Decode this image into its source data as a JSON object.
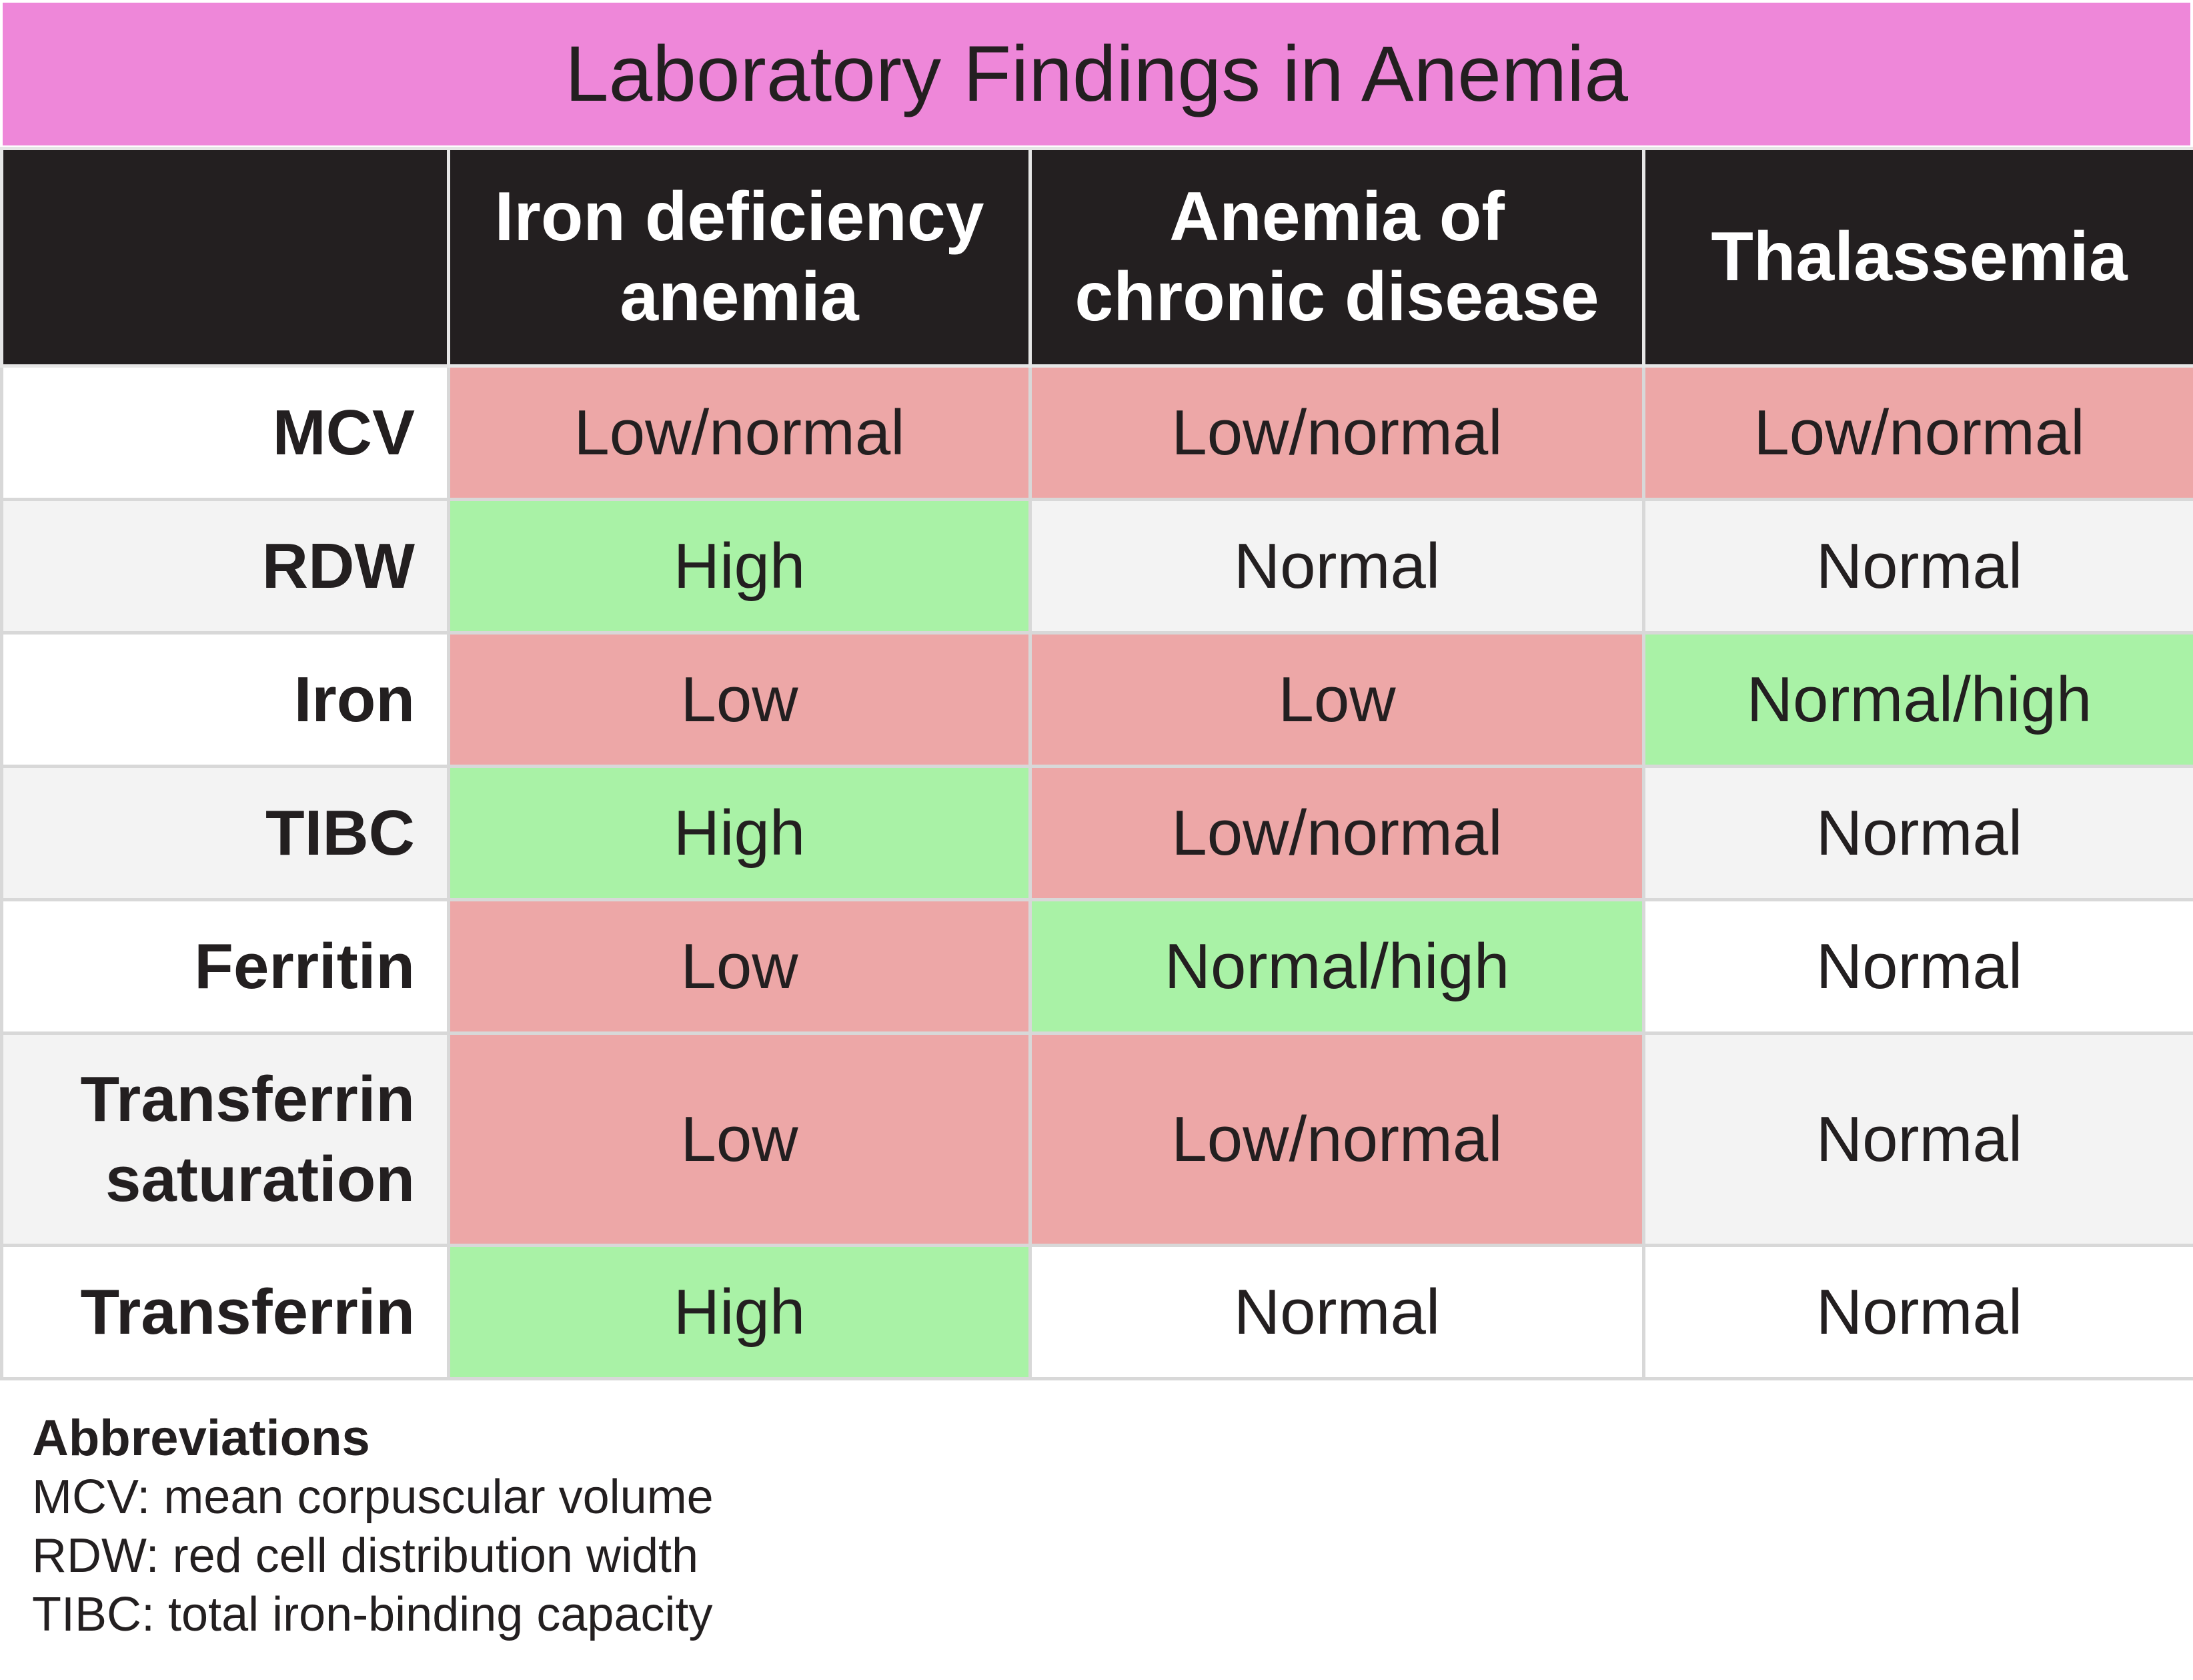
{
  "title": "Laboratory Findings in Anemia",
  "table": {
    "headers": [
      "",
      "Iron deficiency anemia",
      "Anemia of chronic disease",
      "Thalassemia"
    ],
    "rows": [
      {
        "label": "MCV",
        "values": [
          "Low/normal",
          "Low/normal",
          "Low/normal"
        ],
        "tones": [
          "low",
          "low",
          "low"
        ]
      },
      {
        "label": "RDW",
        "values": [
          "High",
          "Normal",
          "Normal"
        ],
        "tones": [
          "high",
          "normal",
          "normal"
        ]
      },
      {
        "label": "Iron",
        "values": [
          "Low",
          "Low",
          "Normal/high"
        ],
        "tones": [
          "low",
          "low",
          "high"
        ]
      },
      {
        "label": "TIBC",
        "values": [
          "High",
          "Low/normal",
          "Normal"
        ],
        "tones": [
          "high",
          "low",
          "normal"
        ]
      },
      {
        "label": "Ferritin",
        "values": [
          "Low",
          "Normal/high",
          "Normal"
        ],
        "tones": [
          "low",
          "high",
          "normal"
        ]
      },
      {
        "label": "Transferrin saturation",
        "values": [
          "Low",
          "Low/normal",
          "Normal"
        ],
        "tones": [
          "low",
          "low",
          "normal"
        ]
      },
      {
        "label": "Transferrin",
        "values": [
          "High",
          "Normal",
          "Normal"
        ],
        "tones": [
          "high",
          "normal",
          "normal"
        ]
      }
    ]
  },
  "abbreviations": {
    "heading": "Abbreviations",
    "items": [
      "MCV: mean corpuscular volume",
      "RDW: red cell distribution width",
      "TIBC: total iron-binding capacity"
    ]
  },
  "colors": {
    "title_background": "#ee87d9",
    "header_background": "#231f20",
    "low": "#eda7a7",
    "high": "#a9f2a6",
    "stripe": "#f3f3f3"
  }
}
